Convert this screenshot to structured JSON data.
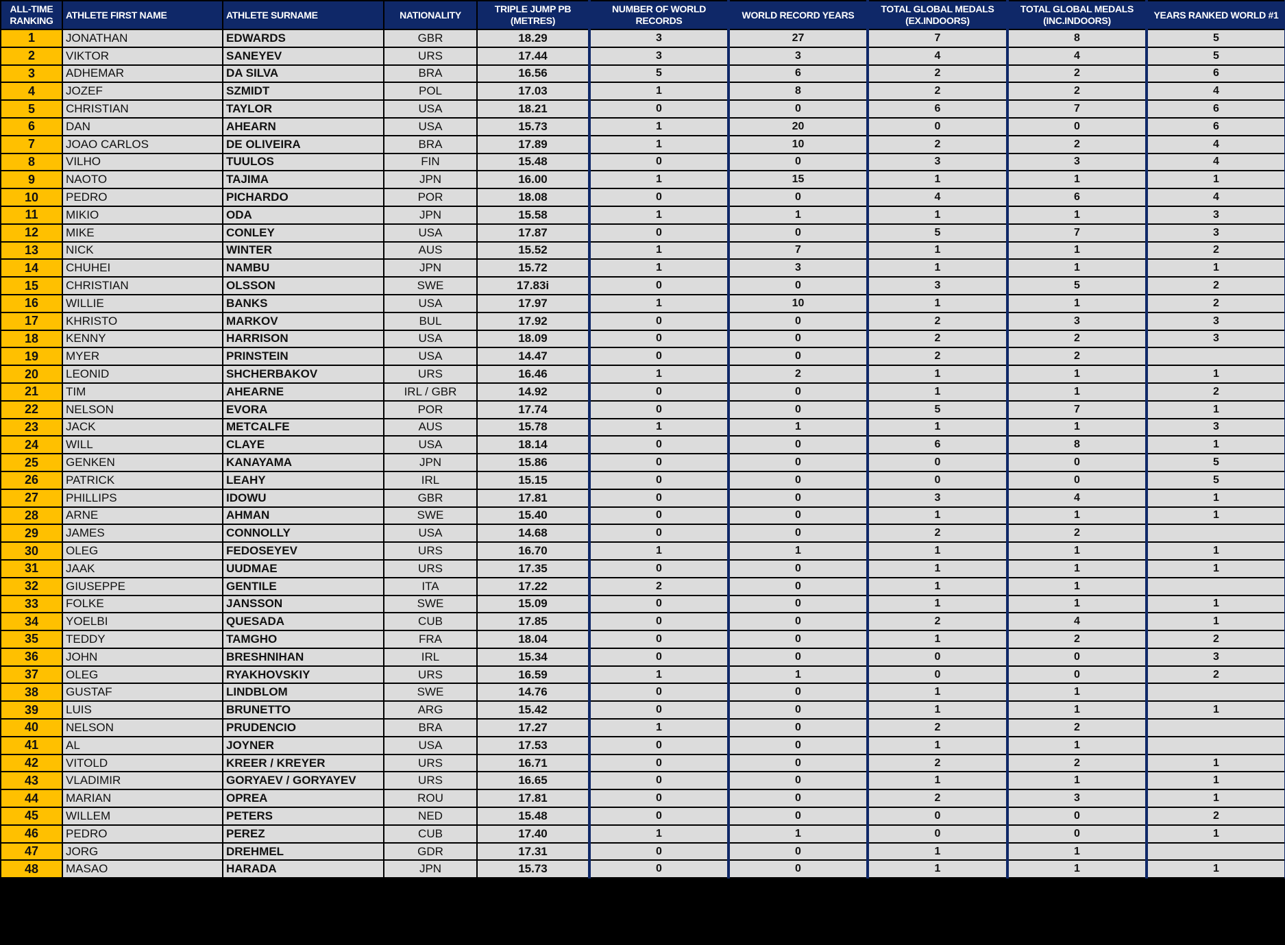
{
  "colors": {
    "header_bg": "#0f2868",
    "rank_bg": "#ffc000",
    "cell_bg": "#dcdcdc"
  },
  "headers": [
    [
      "ALL-TIME",
      "RANKING"
    ],
    [
      "ATHLETE FIRST NAME"
    ],
    [
      "ATHLETE SURNAME"
    ],
    [
      "NATIONALITY"
    ],
    [
      "TRIPLE JUMP PB",
      "(METRES)"
    ],
    [
      "NUMBER OF WORLD",
      "RECORDS"
    ],
    [
      "WORLD RECORD YEARS"
    ],
    [
      "TOTAL GLOBAL MEDALS",
      "(EX.INDOORS)"
    ],
    [
      "TOTAL GLOBAL MEDALS",
      "(INC.INDOORS)"
    ],
    [
      "YEARS RANKED WORLD #1"
    ]
  ],
  "rows": [
    [
      "1",
      "JONATHAN",
      "EDWARDS",
      "GBR",
      "18.29",
      "3",
      "27",
      "7",
      "8",
      "5"
    ],
    [
      "2",
      "VIKTOR",
      "SANEYEV",
      "URS",
      "17.44",
      "3",
      "3",
      "4",
      "4",
      "5"
    ],
    [
      "3",
      "ADHEMAR",
      "DA SILVA",
      "BRA",
      "16.56",
      "5",
      "6",
      "2",
      "2",
      "6"
    ],
    [
      "4",
      "JOZEF",
      "SZMIDT",
      "POL",
      "17.03",
      "1",
      "8",
      "2",
      "2",
      "4"
    ],
    [
      "5",
      "CHRISTIAN",
      "TAYLOR",
      "USA",
      "18.21",
      "0",
      "0",
      "6",
      "7",
      "6"
    ],
    [
      "6",
      "DAN",
      "AHEARN",
      "USA",
      "15.73",
      "1",
      "20",
      "0",
      "0",
      "6"
    ],
    [
      "7",
      "JOAO CARLOS",
      "DE OLIVEIRA",
      "BRA",
      "17.89",
      "1",
      "10",
      "2",
      "2",
      "4"
    ],
    [
      "8",
      "VILHO",
      "TUULOS",
      "FIN",
      "15.48",
      "0",
      "0",
      "3",
      "3",
      "4"
    ],
    [
      "9",
      "NAOTO",
      "TAJIMA",
      "JPN",
      "16.00",
      "1",
      "15",
      "1",
      "1",
      "1"
    ],
    [
      "10",
      "PEDRO",
      "PICHARDO",
      "POR",
      "18.08",
      "0",
      "0",
      "4",
      "6",
      "4"
    ],
    [
      "11",
      "MIKIO",
      "ODA",
      "JPN",
      "15.58",
      "1",
      "1",
      "1",
      "1",
      "3"
    ],
    [
      "12",
      "MIKE",
      "CONLEY",
      "USA",
      "17.87",
      "0",
      "0",
      "5",
      "7",
      "3"
    ],
    [
      "13",
      "NICK",
      "WINTER",
      "AUS",
      "15.52",
      "1",
      "7",
      "1",
      "1",
      "2"
    ],
    [
      "14",
      "CHUHEI",
      "NAMBU",
      "JPN",
      "15.72",
      "1",
      "3",
      "1",
      "1",
      "1"
    ],
    [
      "15",
      "CHRISTIAN",
      "OLSSON",
      "SWE",
      "17.83i",
      "0",
      "0",
      "3",
      "5",
      "2"
    ],
    [
      "16",
      "WILLIE",
      "BANKS",
      "USA",
      "17.97",
      "1",
      "10",
      "1",
      "1",
      "2"
    ],
    [
      "17",
      "KHRISTO",
      "MARKOV",
      "BUL",
      "17.92",
      "0",
      "0",
      "2",
      "3",
      "3"
    ],
    [
      "18",
      "KENNY",
      "HARRISON",
      "USA",
      "18.09",
      "0",
      "0",
      "2",
      "2",
      "3"
    ],
    [
      "19",
      "MYER",
      "PRINSTEIN",
      "USA",
      "14.47",
      "0",
      "0",
      "2",
      "2",
      ""
    ],
    [
      "20",
      "LEONID",
      "SHCHERBAKOV",
      "URS",
      "16.46",
      "1",
      "2",
      "1",
      "1",
      "1"
    ],
    [
      "21",
      "TIM",
      "AHEARNE",
      "IRL / GBR",
      "14.92",
      "0",
      "0",
      "1",
      "1",
      "2"
    ],
    [
      "22",
      "NELSON",
      "EVORA",
      "POR",
      "17.74",
      "0",
      "0",
      "5",
      "7",
      "1"
    ],
    [
      "23",
      "JACK",
      "METCALFE",
      "AUS",
      "15.78",
      "1",
      "1",
      "1",
      "1",
      "3"
    ],
    [
      "24",
      "WILL",
      "CLAYE",
      "USA",
      "18.14",
      "0",
      "0",
      "6",
      "8",
      "1"
    ],
    [
      "25",
      "GENKEN",
      "KANAYAMA",
      "JPN",
      "15.86",
      "0",
      "0",
      "0",
      "0",
      "5"
    ],
    [
      "26",
      "PATRICK",
      "LEAHY",
      "IRL",
      "15.15",
      "0",
      "0",
      "0",
      "0",
      "5"
    ],
    [
      "27",
      "PHILLIPS",
      "IDOWU",
      "GBR",
      "17.81",
      "0",
      "0",
      "3",
      "4",
      "1"
    ],
    [
      "28",
      "ARNE",
      "AHMAN",
      "SWE",
      "15.40",
      "0",
      "0",
      "1",
      "1",
      "1"
    ],
    [
      "29",
      "JAMES",
      "CONNOLLY",
      "USA",
      "14.68",
      "0",
      "0",
      "2",
      "2",
      ""
    ],
    [
      "30",
      "OLEG",
      "FEDOSEYEV",
      "URS",
      "16.70",
      "1",
      "1",
      "1",
      "1",
      "1"
    ],
    [
      "31",
      "JAAK",
      "UUDMAE",
      "URS",
      "17.35",
      "0",
      "0",
      "1",
      "1",
      "1"
    ],
    [
      "32",
      "GIUSEPPE",
      "GENTILE",
      "ITA",
      "17.22",
      "2",
      "0",
      "1",
      "1",
      ""
    ],
    [
      "33",
      "FOLKE",
      "JANSSON",
      "SWE",
      "15.09",
      "0",
      "0",
      "1",
      "1",
      "1"
    ],
    [
      "34",
      "YOELBI",
      "QUESADA",
      "CUB",
      "17.85",
      "0",
      "0",
      "2",
      "4",
      "1"
    ],
    [
      "35",
      "TEDDY",
      "TAMGHO",
      "FRA",
      "18.04",
      "0",
      "0",
      "1",
      "2",
      "2"
    ],
    [
      "36",
      "JOHN",
      "BRESHNIHAN",
      "IRL",
      "15.34",
      "0",
      "0",
      "0",
      "0",
      "3"
    ],
    [
      "37",
      "OLEG",
      "RYAKHOVSKIY",
      "URS",
      "16.59",
      "1",
      "1",
      "0",
      "0",
      "2"
    ],
    [
      "38",
      "GUSTAF",
      "LINDBLOM",
      "SWE",
      "14.76",
      "0",
      "0",
      "1",
      "1",
      ""
    ],
    [
      "39",
      "LUIS",
      "BRUNETTO",
      "ARG",
      "15.42",
      "0",
      "0",
      "1",
      "1",
      "1"
    ],
    [
      "40",
      "NELSON",
      "PRUDENCIO",
      "BRA",
      "17.27",
      "1",
      "0",
      "2",
      "2",
      ""
    ],
    [
      "41",
      "AL",
      "JOYNER",
      "USA",
      "17.53",
      "0",
      "0",
      "1",
      "1",
      ""
    ],
    [
      "42",
      "VITOLD",
      "KREER / KREYER",
      "URS",
      "16.71",
      "0",
      "0",
      "2",
      "2",
      "1"
    ],
    [
      "43",
      "VLADIMIR",
      "GORYAEV / GORYAYEV",
      "URS",
      "16.65",
      "0",
      "0",
      "1",
      "1",
      "1"
    ],
    [
      "44",
      "MARIAN",
      "OPREA",
      "ROU",
      "17.81",
      "0",
      "0",
      "2",
      "3",
      "1"
    ],
    [
      "45",
      "WILLEM",
      "PETERS",
      "NED",
      "15.48",
      "0",
      "0",
      "0",
      "0",
      "2"
    ],
    [
      "46",
      "PEDRO",
      "PEREZ",
      "CUB",
      "17.40",
      "1",
      "1",
      "0",
      "0",
      "1"
    ],
    [
      "47",
      "JORG",
      "DREHMEL",
      "GDR",
      "17.31",
      "0",
      "0",
      "1",
      "1",
      ""
    ],
    [
      "48",
      "MASAO",
      "HARADA",
      "JPN",
      "15.73",
      "0",
      "0",
      "1",
      "1",
      "1"
    ]
  ]
}
